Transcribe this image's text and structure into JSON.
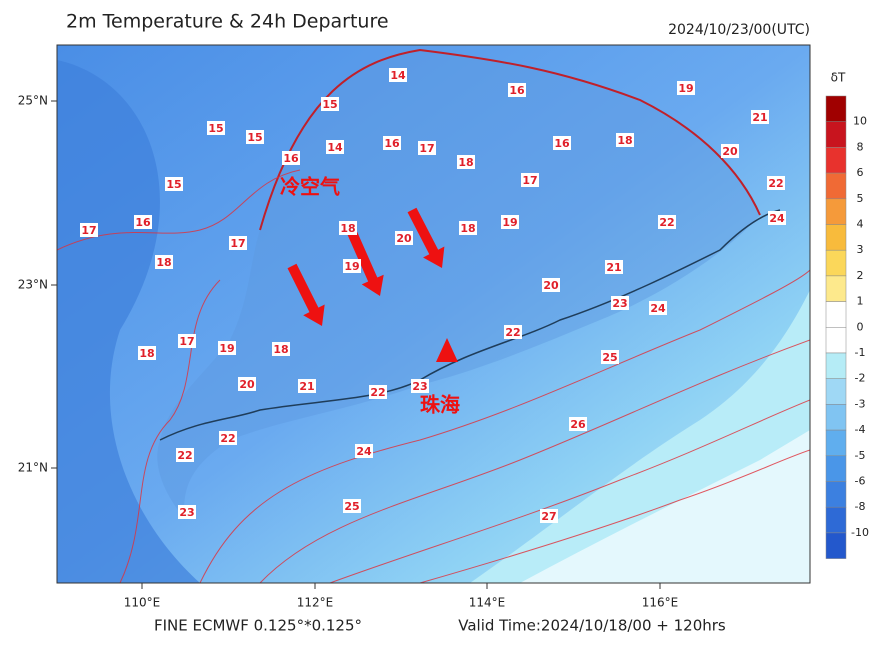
{
  "header": {
    "title": "2m Temperature & 24h Departure",
    "time": "2024/10/23/00(UTC)"
  },
  "axes": {
    "lon_labels": [
      "110°E",
      "112°E",
      "114°E",
      "116°E"
    ],
    "lat_labels": [
      "25°N",
      "23°N",
      "21°N"
    ]
  },
  "colorbar": {
    "title": "δT",
    "labels": [
      "10",
      "8",
      "6",
      "5",
      "4",
      "3",
      "2",
      "1",
      "0",
      "-1",
      "-2",
      "-3",
      "-4",
      "-5",
      "-6",
      "-8",
      "-10"
    ],
    "colors": [
      "#a00000",
      "#c8141e",
      "#e8322d",
      "#f06a35",
      "#f59a3a",
      "#f8bb3c",
      "#fbd75a",
      "#fde98c",
      "#ffffff",
      "#ffffff",
      "#b5ecf6",
      "#9fd8f5",
      "#80c4f2",
      "#60aeee",
      "#4a96e8",
      "#3c80e0",
      "#2e6ad6",
      "#2358cc"
    ]
  },
  "contour_labels": [
    "14",
    "16",
    "19",
    "21",
    "15",
    "15",
    "15",
    "16",
    "17",
    "16",
    "18",
    "14",
    "16",
    "18",
    "20",
    "15",
    "17",
    "22",
    "16",
    "18",
    "19",
    "18",
    "17",
    "20",
    "17",
    "22",
    "24",
    "18",
    "19",
    "21",
    "20",
    "23",
    "24",
    "17",
    "19",
    "18",
    "22",
    "18",
    "25",
    "20",
    "21",
    "22",
    "23",
    "26",
    "22",
    "24",
    "22",
    "25",
    "27",
    "23"
  ],
  "annotations": {
    "cold_air": "冷空气",
    "city": "珠海"
  },
  "footer": {
    "source": "FINE ECMWF 0.125°*0.125°",
    "valid": "Valid Time:2024/10/18/00 + 120hrs"
  }
}
